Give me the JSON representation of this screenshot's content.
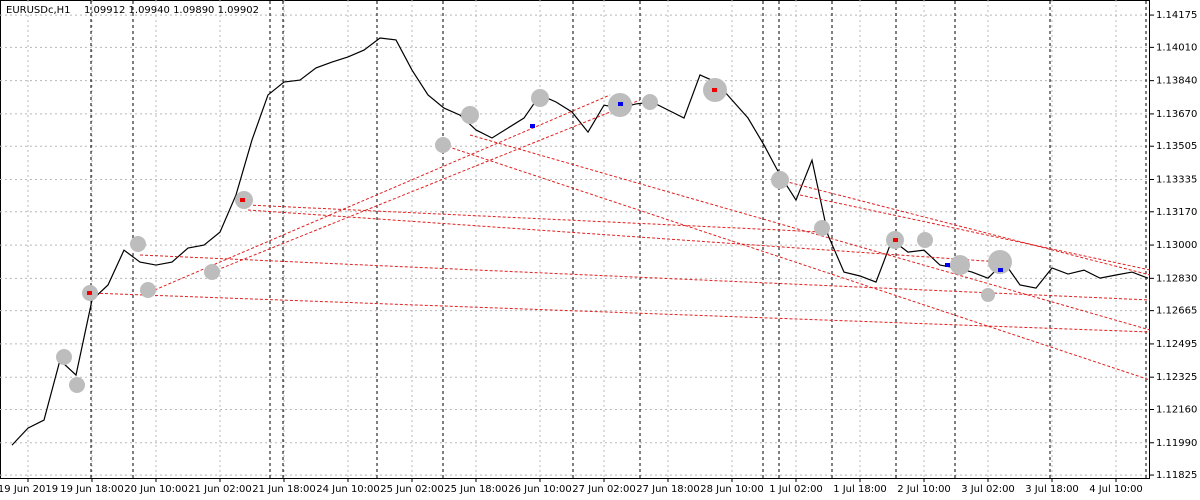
{
  "chart_data": {
    "type": "line",
    "title": "EURUSDc,H1",
    "subtitle": "1.09912 1.09940 1.09890 1.09902",
    "color": "#000000",
    "grid": true,
    "categories": [
      null,
      "19 Jun 2019",
      null,
      null,
      null,
      "19 Jun 18:00",
      null,
      null,
      null,
      "20 Jun 10:00",
      null,
      null,
      null,
      "21 Jun 02:00",
      null,
      null,
      null,
      "21 Jun 18:00",
      null,
      null,
      null,
      "24 Jun 10:00",
      null,
      null,
      null,
      "25 Jun 02:00",
      null,
      null,
      null,
      "25 Jun 18:00",
      null,
      null,
      null,
      "26 Jun 10:00",
      null,
      null,
      null,
      "27 Jun 02:00",
      null,
      null,
      null,
      "27 Jun 18:00",
      null,
      null,
      null,
      "28 Jun 10:00",
      null,
      null,
      null,
      "1 Jul 02:00",
      null,
      null,
      null,
      "1 Jul 18:00",
      null,
      null,
      null,
      "2 Jul 10:00",
      null,
      null,
      null,
      "3 Jul 02:00",
      null,
      null,
      null,
      "3 Jul 18:00",
      null,
      null,
      null,
      "4 Jul 10:00",
      null,
      null
    ],
    "values": [
      1.11978,
      1.12065,
      1.12106,
      1.12412,
      1.12336,
      1.12719,
      1.12796,
      1.12974,
      1.12913,
      1.12898,
      1.12913,
      1.12985,
      1.13,
      1.13066,
      1.13256,
      1.13537,
      1.13767,
      1.13833,
      1.13843,
      1.13905,
      1.13935,
      1.13961,
      1.13996,
      1.14058,
      1.14048,
      1.13894,
      1.13767,
      1.137,
      1.13664,
      1.13588,
      1.13547,
      1.13598,
      1.13649,
      1.13767,
      1.13731,
      1.1368,
      1.13577,
      1.13715,
      1.137,
      1.13721,
      1.13731,
      1.1369,
      1.13649,
      1.13869,
      1.13833,
      1.13741,
      1.13649,
      1.13511,
      1.13358,
      1.1323,
      1.13434,
      1.13051,
      1.12862,
      1.12842,
      1.12811,
      1.13026,
      1.12964,
      1.12974,
      1.12898,
      1.12883,
      1.12862,
      1.12831,
      1.12913,
      1.12796,
      1.1278,
      1.12883,
      1.12852,
      1.12872,
      1.12831,
      1.12847,
      1.12862,
      1.12831
    ],
    "ylim": [
      1.1181,
      1.14252
    ],
    "yticks": [
      1.14175,
      {
        "value": 1.1401,
        "label": "1.14010"
      },
      {
        "value": 1.1384,
        "label": "1.13840"
      },
      {
        "value": 1.1367,
        "label": "1.13670"
      },
      1.13505,
      1.13335,
      {
        "value": 1.1317,
        "label": "1.13170"
      },
      {
        "value": 1.13,
        "label": "1.13000"
      },
      {
        "value": 1.1283,
        "label": "1.12830"
      },
      1.12665,
      1.12495,
      1.12325,
      {
        "value": 1.1216,
        "label": "1.12160"
      },
      {
        "value": 1.1199,
        "label": "1.11990"
      },
      1.11825
    ]
  }
}
